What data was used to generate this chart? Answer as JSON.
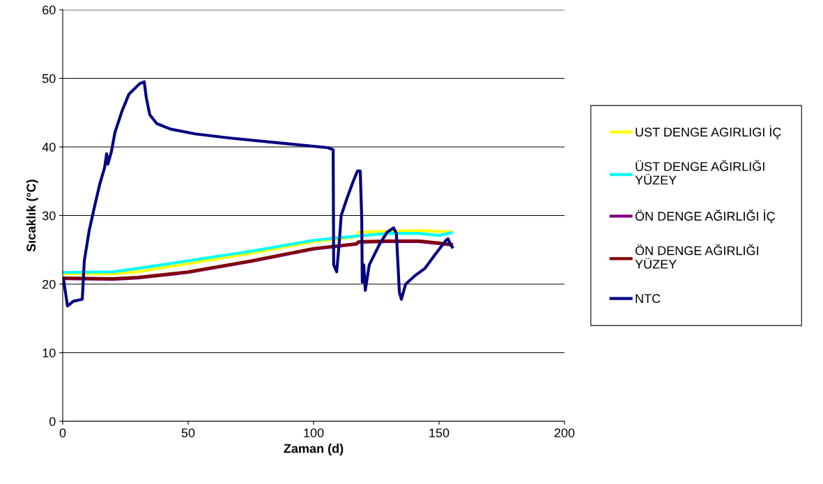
{
  "chart_data": {
    "type": "line",
    "xlabel": "Zaman (d)",
    "ylabel": "Sıcaklık (°C)",
    "xlim": [
      0,
      200
    ],
    "xticks": [
      0,
      50,
      100,
      150,
      200
    ],
    "ylim": [
      0,
      60
    ],
    "yticks": [
      0,
      10,
      20,
      30,
      40,
      50,
      60
    ],
    "grid": "y",
    "legend": "right",
    "marker": "none",
    "line_style": "solid",
    "series": [
      {
        "name": "UST DENGE AGIRLIGI İÇ",
        "color": "#ffff00",
        "x": [
          0,
          20,
          30,
          50,
          75,
          100,
          117,
          118,
          130,
          142,
          150,
          155
        ],
        "values": [
          21.5,
          21.5,
          21.8,
          23.0,
          24.5,
          26.2,
          26.9,
          27.6,
          27.7,
          27.8,
          27.7,
          27.6
        ]
      },
      {
        "name": "ÜST DENGE AĞIRLIĞI YÜZEY",
        "color": "#00ffff",
        "x": [
          0,
          20,
          30,
          50,
          75,
          100,
          117,
          130,
          142,
          150,
          155
        ],
        "values": [
          21.7,
          21.8,
          22.3,
          23.4,
          24.8,
          26.4,
          27.0,
          27.4,
          27.4,
          27.1,
          27.5
        ]
      },
      {
        "name": "ÖN DENGE AĞIRLIĞI İÇ",
        "color": "#800080",
        "x": [
          0,
          20,
          30,
          50,
          75,
          100,
          117,
          118,
          130,
          142,
          150,
          155
        ],
        "values": [
          20.8,
          20.7,
          20.9,
          21.7,
          23.3,
          25.1,
          25.8,
          26.1,
          26.2,
          26.2,
          25.9,
          25.7
        ]
      },
      {
        "name": "ÖN DENGE AĞIRLIĞI YÜZEY",
        "color": "#800000",
        "x": [
          0,
          20,
          30,
          50,
          75,
          100,
          117,
          118,
          130,
          142,
          150,
          155
        ],
        "values": [
          20.9,
          20.8,
          21.0,
          21.8,
          23.4,
          25.2,
          25.9,
          26.2,
          26.3,
          26.3,
          26.0,
          25.8
        ]
      },
      {
        "name": "NTC",
        "color": "#000080",
        "x": [
          0.3,
          1.9,
          4.2,
          7.8,
          8.6,
          10.6,
          12.5,
          14.7,
          16.7,
          17.5,
          18.0,
          19.4,
          20.8,
          23.6,
          26.4,
          30.6,
          32.5,
          33.3,
          34.7,
          37.5,
          43,
          52.8,
          66.7,
          86,
          105.6,
          107.8,
          108,
          109.2,
          110.3,
          111,
          113.3,
          115.8,
          117.5,
          118.6,
          119.2,
          119.4,
          120,
          120.6,
          122.2,
          126.4,
          129.4,
          131.9,
          133,
          134.2,
          135,
          136.7,
          140.3,
          144.4,
          148.6,
          152.8,
          153.6,
          154.7,
          155.3
        ],
        "values": [
          20.8,
          16.8,
          17.5,
          17.8,
          23.4,
          27.9,
          31,
          34.5,
          37,
          39,
          37.5,
          39.3,
          42.1,
          45.2,
          47.7,
          49.2,
          49.5,
          47.2,
          44.7,
          43.4,
          42.6,
          41.9,
          41.3,
          40.6,
          39.9,
          39.6,
          22.8,
          21.8,
          26.4,
          30,
          32.5,
          35,
          36.5,
          36.5,
          29.4,
          20.3,
          22.8,
          19.1,
          22.8,
          25.9,
          27.6,
          28.2,
          27.4,
          18.8,
          17.8,
          20,
          21.2,
          22.3,
          24.4,
          26.4,
          26.6,
          25.7,
          25.4
        ]
      }
    ]
  }
}
